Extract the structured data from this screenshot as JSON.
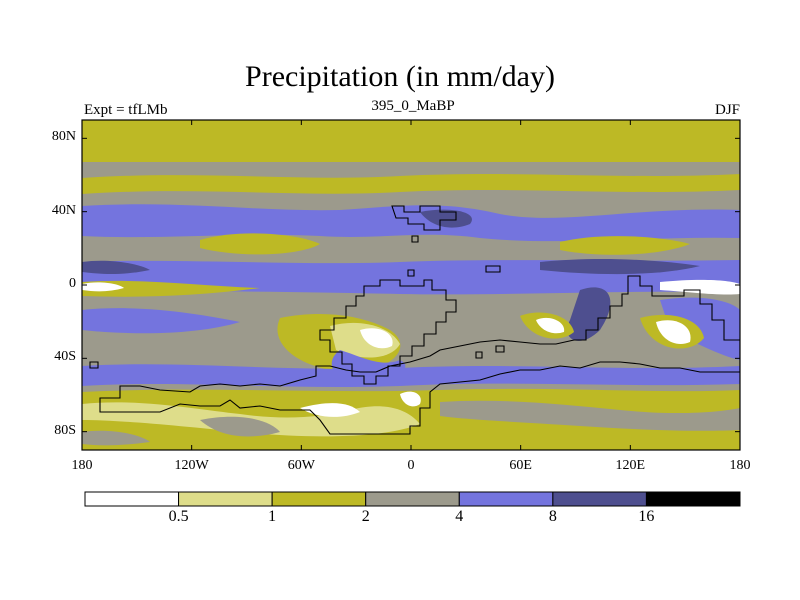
{
  "title": "Precipitation (in mm/day)",
  "left_label": "Expt = tfLMb",
  "center_label": "395_0_MaBP",
  "right_label": "DJF",
  "map": {
    "projection": "cylindrical equidistant",
    "lon_range": [
      -180,
      180
    ],
    "lat_range": [
      -90,
      90
    ],
    "y_ticks": [
      {
        "lat": 80,
        "label": "80N"
      },
      {
        "lat": 40,
        "label": "40N"
      },
      {
        "lat": 0,
        "label": "0"
      },
      {
        "lat": -40,
        "label": "40S"
      },
      {
        "lat": -80,
        "label": "80S"
      }
    ],
    "x_ticks": [
      {
        "lon": -180,
        "label": "180"
      },
      {
        "lon": -120,
        "label": "120W"
      },
      {
        "lon": -60,
        "label": "60W"
      },
      {
        "lon": 0,
        "label": "0"
      },
      {
        "lon": 60,
        "label": "60E"
      },
      {
        "lon": 120,
        "label": "120E"
      },
      {
        "lon": 180,
        "label": "180"
      }
    ]
  },
  "colorbar": {
    "bins": [
      "#ffffff",
      "#dedd8a",
      "#bdb925",
      "#9c9a8c",
      "#7474de",
      "#4e4f8f",
      "#000000"
    ],
    "labels": [
      "0.5",
      "1",
      "2",
      "4",
      "8",
      "16"
    ]
  }
}
